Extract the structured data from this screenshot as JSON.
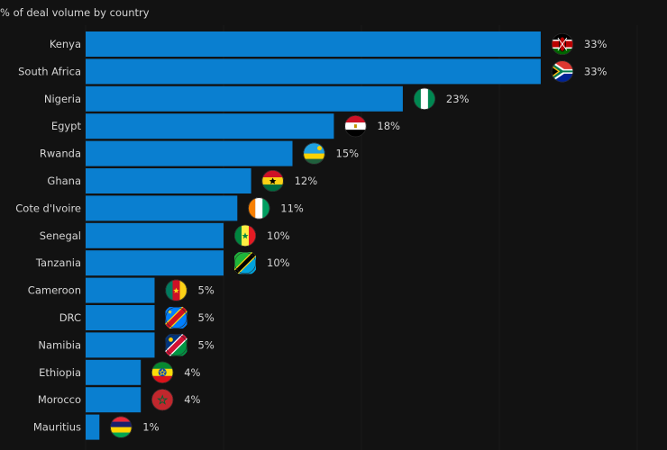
{
  "chart_data": {
    "type": "bar",
    "orientation": "horizontal",
    "title": "",
    "subtitle": "% of deal volume by country",
    "xlabel": "",
    "ylabel": "",
    "xlim": [
      0,
      33
    ],
    "grid": true,
    "bar_color": "#0a7fd0",
    "categories": [
      "Kenya",
      "South Africa",
      "Nigeria",
      "Egypt",
      "Rwanda",
      "Ghana",
      "Cote d'Ivoire",
      "Senegal",
      "Tanzania",
      "Cameroon",
      "DRC",
      "Namibia",
      "Ethiopia",
      "Morocco",
      "Mauritius"
    ],
    "values": [
      33,
      33,
      23,
      18,
      15,
      12,
      11,
      10,
      10,
      5,
      5,
      5,
      4,
      4,
      1
    ],
    "value_labels": [
      "33%",
      "33%",
      "23%",
      "18%",
      "15%",
      "12%",
      "11%",
      "10%",
      "10%",
      "5%",
      "5%",
      "5%",
      "4%",
      "4%",
      "1%"
    ],
    "flag_icons": [
      "kenya-flag-icon",
      "south-africa-flag-icon",
      "nigeria-flag-icon",
      "egypt-flag-icon",
      "rwanda-flag-icon",
      "ghana-flag-icon",
      "cote-divoire-flag-icon",
      "senegal-flag-icon",
      "tanzania-flag-icon",
      "cameroon-flag-icon",
      "drc-flag-icon",
      "namibia-flag-icon",
      "ethiopia-flag-icon",
      "morocco-flag-icon",
      "mauritius-flag-icon"
    ]
  }
}
